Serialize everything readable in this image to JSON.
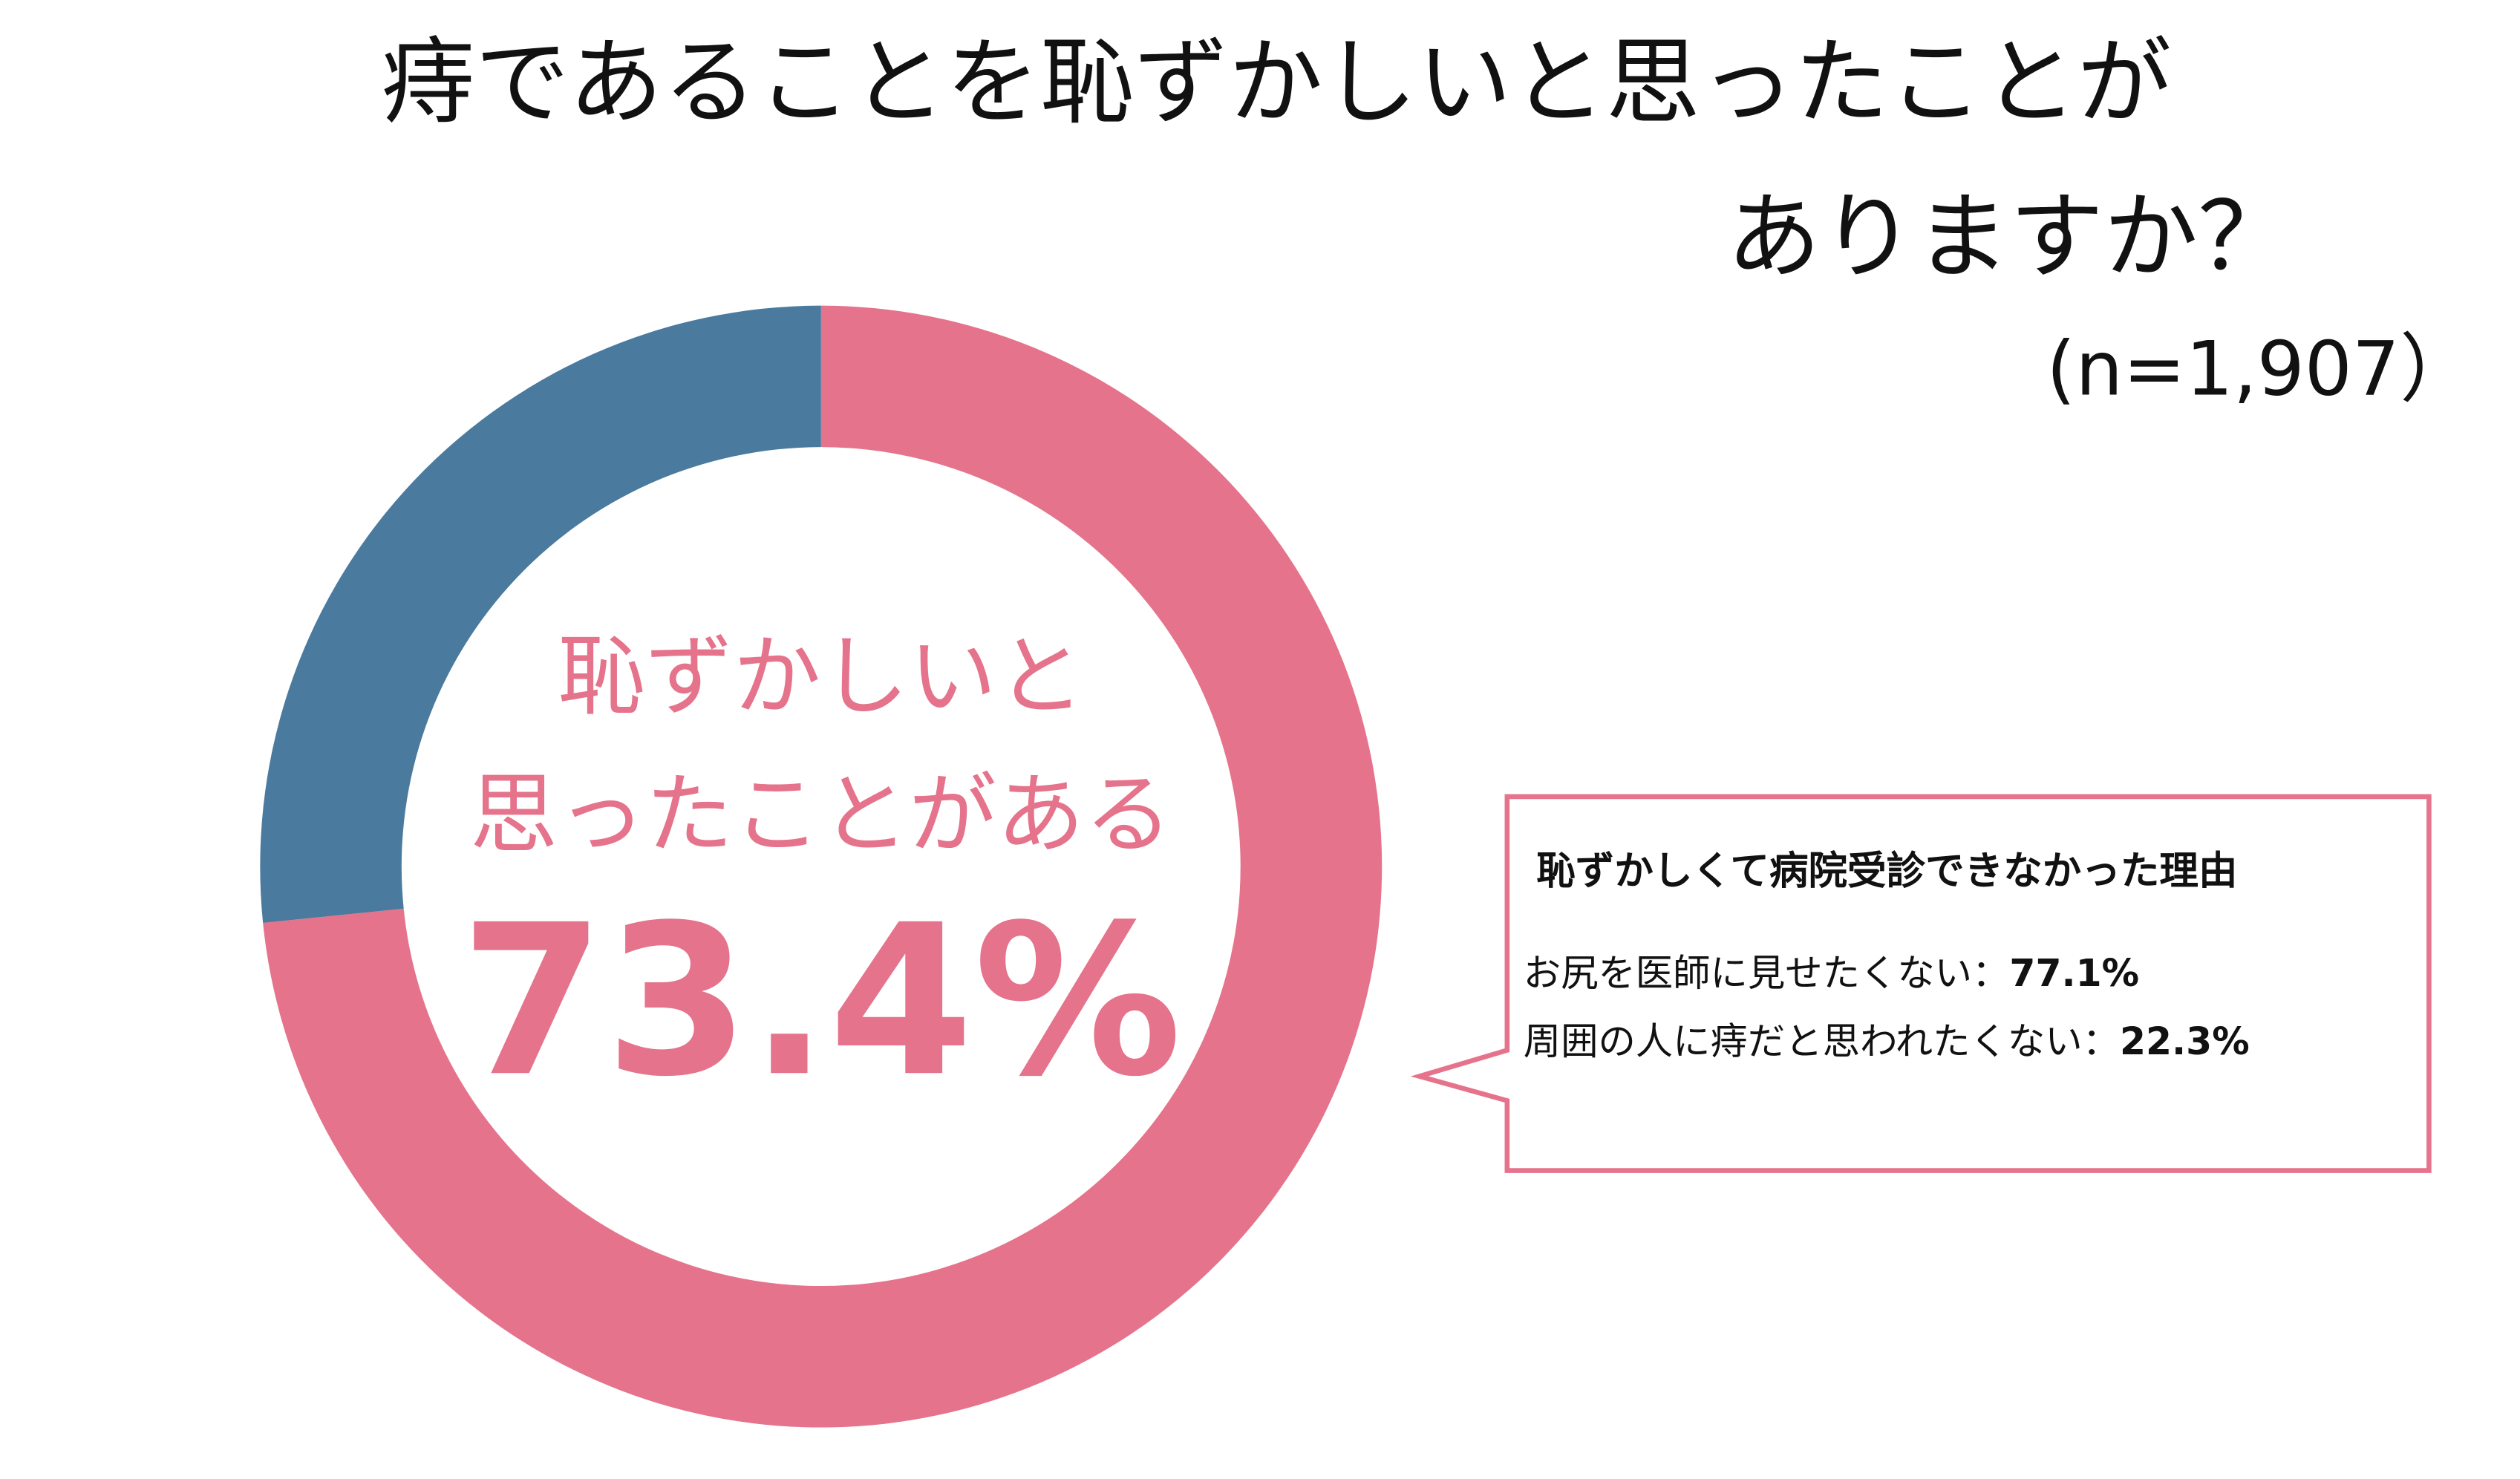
{
  "chart_data": {
    "type": "donut",
    "title": [
      "痔であることを恥ずかしいと思ったことが",
      "ありますか？"
    ],
    "subtitle": "(n=1,907）",
    "values": [
      73.4,
      26.6
    ],
    "value_labels": [
      "73.4%",
      null
    ],
    "colors": [
      "#e5738b",
      "#4a7a9e"
    ],
    "center_text": [
      "恥ずかしいと",
      "思ったことがある"
    ],
    "callout": {
      "title": "恥ずかしくて病院受診できなかった理由",
      "lines": [
        {
          "label": "お尻を医師に見せたくない：",
          "value": "77.1%"
        },
        {
          "label": "周囲の人に痔だと思われたくない：",
          "value": "22.3%"
        }
      ]
    }
  }
}
